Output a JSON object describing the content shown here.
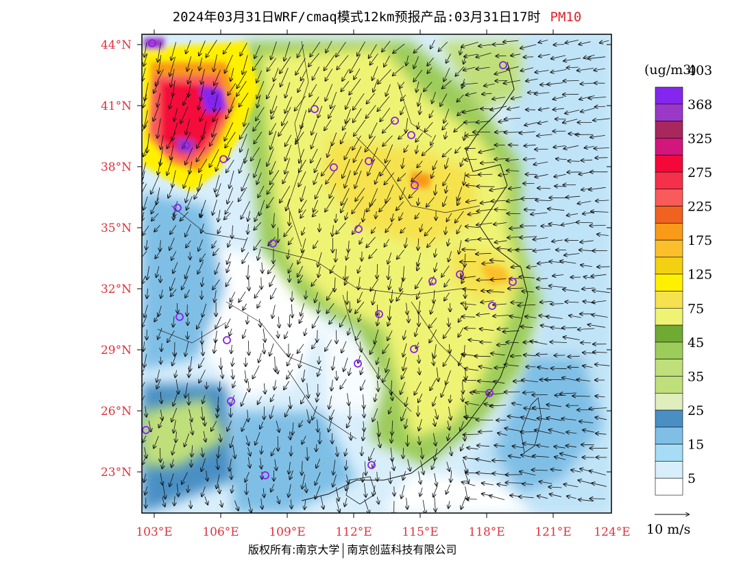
{
  "title": {
    "main": "2024年03月31日WRF/cmaq模式12km预报产品:03月31日17时",
    "variable": "PM10"
  },
  "colorbar": {
    "unit": "(ug/m3)",
    "labels": [
      "5",
      "15",
      "25",
      "35",
      "45",
      "75",
      "125",
      "175",
      "225",
      "275",
      "325",
      "368",
      "403"
    ],
    "colors": [
      "#ffffff",
      "#d8eefb",
      "#a6dcf5",
      "#7fbfe6",
      "#4a8fc4",
      "#dfeebc",
      "#bfdf7a",
      "#bfdf7a",
      "#9ccc5a",
      "#6faa33",
      "#eef373",
      "#f5e24e",
      "#fff000",
      "#f3d012",
      "#fbbf2c",
      "#f99a18",
      "#ef6220",
      "#f95a5a",
      "#f5304a",
      "#f4083a",
      "#d2167b",
      "#a8275c",
      "#9a38c7",
      "#8426ee"
    ]
  },
  "wind_legend": {
    "label": "10 m/s"
  },
  "axes": {
    "lat_labels": [
      "44°N",
      "41°N",
      "38°N",
      "35°N",
      "32°N",
      "29°N",
      "26°N",
      "23°N"
    ],
    "lon_labels": [
      "103°E",
      "106°E",
      "109°E",
      "112°E",
      "115°E",
      "118°E",
      "121°E",
      "124°E"
    ],
    "lat_range": [
      21,
      44.5
    ],
    "lon_range": [
      102.8,
      124
    ]
  },
  "footer": {
    "copyright": "版权所有:南京大学",
    "company": "南京创蓝科技有限公司"
  }
}
